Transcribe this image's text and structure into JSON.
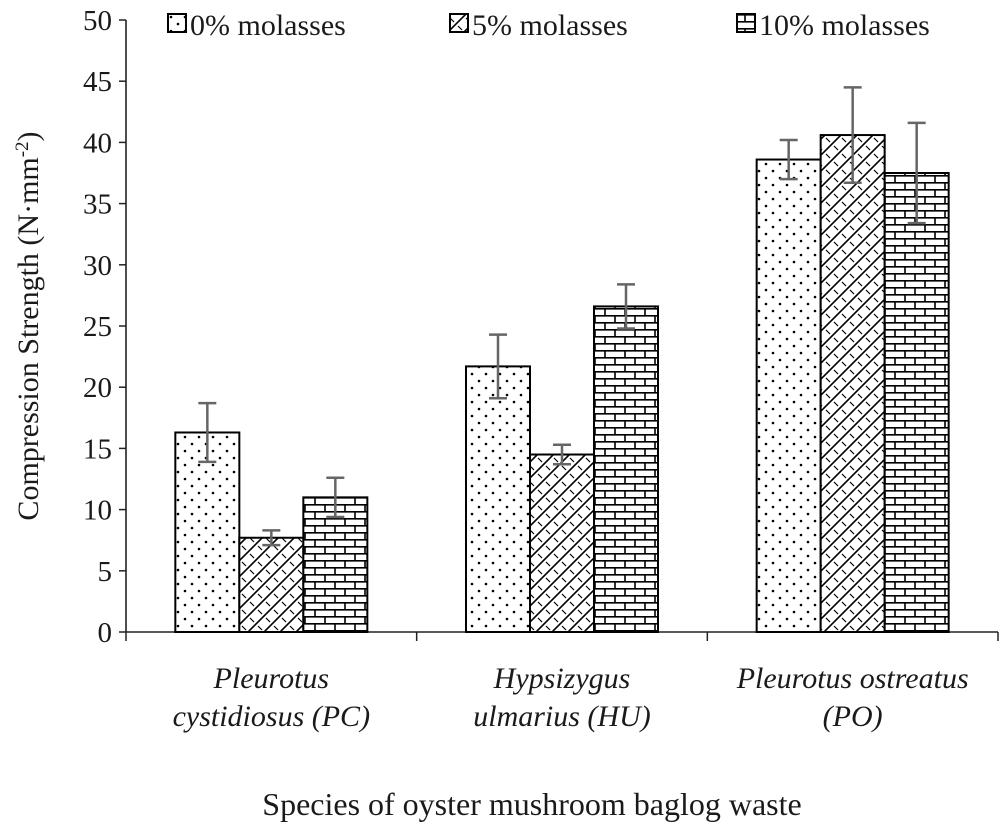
{
  "chart_data": {
    "type": "bar",
    "title": "",
    "ylabel": "Compression Strength (N·mm⁻²)",
    "ylabel_main": "Compression Strength (N·mm",
    "ylabel_exp": "-2",
    "ylabel_close": ")",
    "xlabel": "Species of oyster mushroom baglog waste",
    "ylim": [
      0,
      50
    ],
    "yticks": [
      0,
      5,
      10,
      15,
      20,
      25,
      30,
      35,
      40,
      45,
      50
    ],
    "categories": [
      [
        "Pleurotus",
        "cystidiosus (PC)"
      ],
      [
        "Hypsizygus",
        "ulmarius (HU)"
      ],
      [
        "Pleurotus ostreatus",
        "(PO)"
      ]
    ],
    "series": [
      {
        "name": "0% molasses",
        "pattern": "dots",
        "values": [
          16.3,
          21.7,
          38.6
        ],
        "errors": [
          2.4,
          2.6,
          1.6
        ]
      },
      {
        "name": "5% molasses",
        "pattern": "diag",
        "values": [
          7.7,
          14.5,
          40.6
        ],
        "errors": [
          0.6,
          0.8,
          3.9
        ]
      },
      {
        "name": "10% molasses",
        "pattern": "brick",
        "values": [
          11.0,
          26.6,
          37.5
        ],
        "errors": [
          1.6,
          1.8,
          4.1
        ]
      }
    ],
    "legend_position": "top",
    "grid": false,
    "colors": {
      "bar_stroke": "#000000",
      "error_bar": "#666666",
      "axis": "#222222"
    }
  }
}
